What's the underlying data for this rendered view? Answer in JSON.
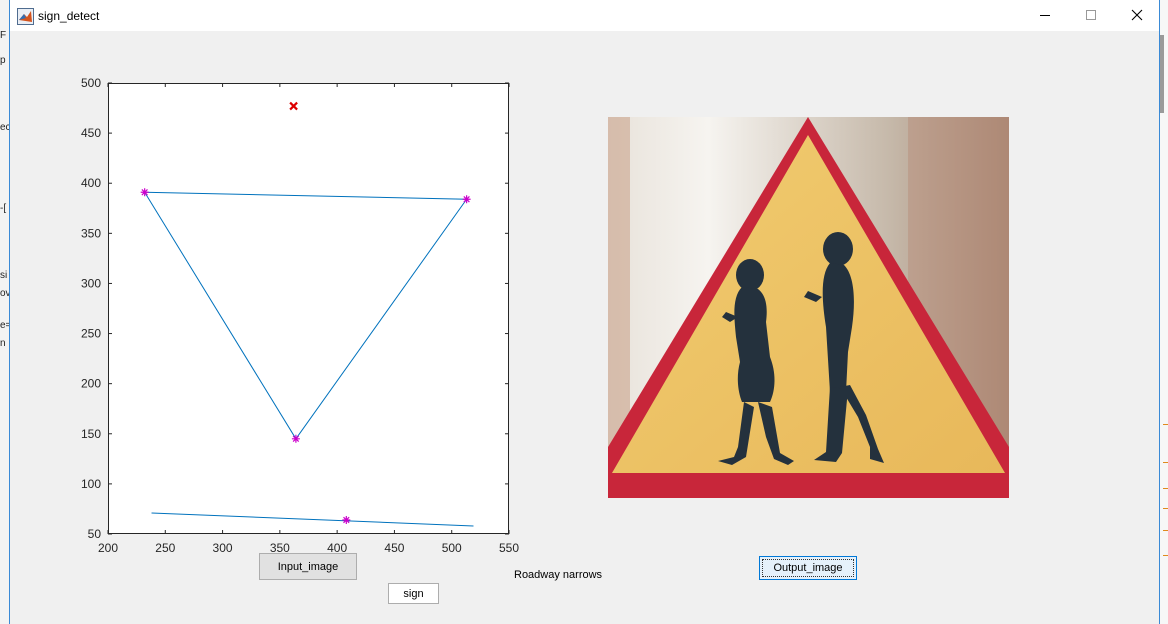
{
  "window": {
    "title": "sign_detect",
    "controls": [
      "minimize",
      "maximize",
      "close"
    ]
  },
  "background_fragments": [
    "F",
    "p",
    "ec",
    "-[",
    "si",
    "ov",
    "e=",
    "n"
  ],
  "buttons": {
    "input_image": "Input_image",
    "sign": "sign",
    "output_image": "Output_image"
  },
  "result_text": "Roadway narrows",
  "chart_data": {
    "type": "line",
    "xlim": [
      200,
      550
    ],
    "ylim": [
      50,
      500
    ],
    "x_ticks": [
      200,
      250,
      300,
      350,
      400,
      450,
      500,
      550
    ],
    "y_ticks": [
      50,
      100,
      150,
      200,
      250,
      300,
      350,
      400,
      450,
      500
    ],
    "grid": false,
    "series": [
      {
        "style": "line",
        "color": "#0072bd",
        "points": [
          [
            232,
            391
          ],
          [
            513,
            384
          ],
          [
            364,
            145
          ],
          [
            232,
            391
          ]
        ]
      },
      {
        "style": "line",
        "color": "#0072bd",
        "points": [
          [
            238,
            71
          ],
          [
            519,
            58
          ]
        ]
      },
      {
        "style": "asterisk",
        "color": "#cc00cc",
        "points": [
          [
            232,
            391
          ],
          [
            513,
            384
          ],
          [
            364,
            145
          ],
          [
            408,
            64
          ]
        ]
      },
      {
        "style": "x",
        "color": "#dd0000",
        "points": [
          [
            362,
            477
          ]
        ]
      }
    ]
  },
  "output_image": {
    "subject": "triangular warning road sign with two pedestrians looking at phones",
    "colors": {
      "border": "#c8263a",
      "fill": "#f0c66a",
      "figures": "#24313d"
    }
  }
}
